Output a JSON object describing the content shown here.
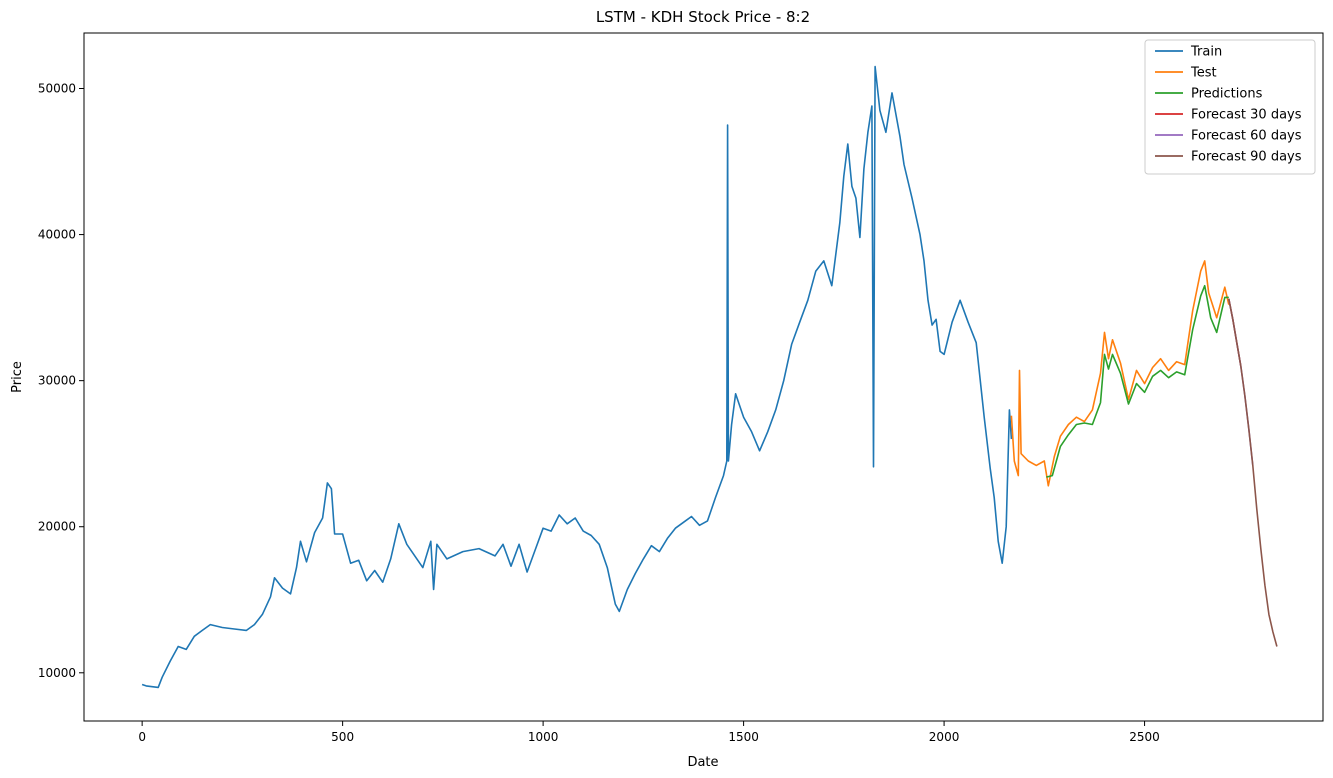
{
  "chart_data": {
    "type": "line",
    "title": "LSTM - KDH Stock Price - 8:2",
    "xlabel": "Date",
    "ylabel": "Price",
    "xlim": [
      -145,
      2945
    ],
    "ylim": [
      6700,
      53800
    ],
    "xticks": [
      0,
      500,
      1000,
      1500,
      2000,
      2500
    ],
    "yticks": [
      10000,
      20000,
      30000,
      40000,
      50000
    ],
    "grid": false,
    "legend_position": "top-right",
    "series": [
      {
        "name": "Train",
        "color": "#1f77b4",
        "points": [
          [
            0,
            9200
          ],
          [
            10,
            9100
          ],
          [
            40,
            9000
          ],
          [
            50,
            9700
          ],
          [
            70,
            10800
          ],
          [
            90,
            11800
          ],
          [
            110,
            11600
          ],
          [
            130,
            12500
          ],
          [
            150,
            12900
          ],
          [
            170,
            13300
          ],
          [
            200,
            13100
          ],
          [
            230,
            13000
          ],
          [
            260,
            12900
          ],
          [
            280,
            13300
          ],
          [
            300,
            14000
          ],
          [
            320,
            15200
          ],
          [
            330,
            16500
          ],
          [
            350,
            15800
          ],
          [
            370,
            15400
          ],
          [
            385,
            17200
          ],
          [
            395,
            19000
          ],
          [
            410,
            17600
          ],
          [
            430,
            19600
          ],
          [
            450,
            20600
          ],
          [
            462,
            23000
          ],
          [
            472,
            22600
          ],
          [
            480,
            19500
          ],
          [
            500,
            19500
          ],
          [
            520,
            17500
          ],
          [
            540,
            17700
          ],
          [
            560,
            16300
          ],
          [
            580,
            17000
          ],
          [
            600,
            16200
          ],
          [
            620,
            17800
          ],
          [
            640,
            20200
          ],
          [
            660,
            18800
          ],
          [
            680,
            18000
          ],
          [
            700,
            17200
          ],
          [
            720,
            19000
          ],
          [
            727,
            15700
          ],
          [
            735,
            18800
          ],
          [
            760,
            17800
          ],
          [
            800,
            18300
          ],
          [
            840,
            18500
          ],
          [
            880,
            18000
          ],
          [
            900,
            18800
          ],
          [
            920,
            17300
          ],
          [
            940,
            18800
          ],
          [
            960,
            16900
          ],
          [
            980,
            18400
          ],
          [
            1000,
            19900
          ],
          [
            1020,
            19700
          ],
          [
            1040,
            20800
          ],
          [
            1060,
            20200
          ],
          [
            1080,
            20600
          ],
          [
            1100,
            19700
          ],
          [
            1120,
            19400
          ],
          [
            1140,
            18800
          ],
          [
            1160,
            17200
          ],
          [
            1180,
            14700
          ],
          [
            1190,
            14200
          ],
          [
            1210,
            15700
          ],
          [
            1230,
            16800
          ],
          [
            1250,
            17800
          ],
          [
            1270,
            18700
          ],
          [
            1290,
            18300
          ],
          [
            1310,
            19200
          ],
          [
            1330,
            19900
          ],
          [
            1350,
            20300
          ],
          [
            1370,
            20700
          ],
          [
            1390,
            20100
          ],
          [
            1410,
            20400
          ],
          [
            1430,
            22000
          ],
          [
            1450,
            23500
          ],
          [
            1458,
            24500
          ],
          [
            1460,
            47500
          ],
          [
            1462,
            24500
          ],
          [
            1470,
            27000
          ],
          [
            1480,
            29100
          ],
          [
            1500,
            27500
          ],
          [
            1520,
            26500
          ],
          [
            1540,
            25200
          ],
          [
            1560,
            26500
          ],
          [
            1580,
            28000
          ],
          [
            1600,
            30000
          ],
          [
            1620,
            32500
          ],
          [
            1640,
            34000
          ],
          [
            1660,
            35500
          ],
          [
            1680,
            37500
          ],
          [
            1700,
            38200
          ],
          [
            1720,
            36500
          ],
          [
            1740,
            40800
          ],
          [
            1750,
            44000
          ],
          [
            1760,
            46200
          ],
          [
            1770,
            43300
          ],
          [
            1780,
            42500
          ],
          [
            1790,
            39800
          ],
          [
            1800,
            44500
          ],
          [
            1810,
            47000
          ],
          [
            1820,
            48800
          ],
          [
            1824,
            24100
          ],
          [
            1828,
            51500
          ],
          [
            1840,
            48500
          ],
          [
            1855,
            47000
          ],
          [
            1870,
            49700
          ],
          [
            1890,
            46700
          ],
          [
            1900,
            44800
          ],
          [
            1920,
            42500
          ],
          [
            1940,
            40000
          ],
          [
            1950,
            38200
          ],
          [
            1960,
            35500
          ],
          [
            1970,
            33800
          ],
          [
            1980,
            34200
          ],
          [
            1990,
            32000
          ],
          [
            2000,
            31800
          ],
          [
            2020,
            34000
          ],
          [
            2040,
            35500
          ],
          [
            2060,
            34000
          ],
          [
            2080,
            32600
          ],
          [
            2100,
            27500
          ],
          [
            2115,
            24000
          ],
          [
            2125,
            22000
          ],
          [
            2135,
            19000
          ],
          [
            2145,
            17500
          ],
          [
            2155,
            20000
          ],
          [
            2163,
            28000
          ],
          [
            2168,
            26000
          ]
        ]
      },
      {
        "name": "Test",
        "color": "#ff7f0e",
        "points": [
          [
            2168,
            27600
          ],
          [
            2175,
            24500
          ],
          [
            2185,
            23500
          ],
          [
            2188,
            30700
          ],
          [
            2192,
            25000
          ],
          [
            2210,
            24500
          ],
          [
            2230,
            24200
          ],
          [
            2250,
            24500
          ],
          [
            2260,
            22800
          ],
          [
            2275,
            24800
          ],
          [
            2290,
            26200
          ],
          [
            2310,
            27000
          ],
          [
            2330,
            27500
          ],
          [
            2350,
            27200
          ],
          [
            2370,
            28000
          ],
          [
            2390,
            30500
          ],
          [
            2400,
            33300
          ],
          [
            2410,
            31500
          ],
          [
            2420,
            32800
          ],
          [
            2440,
            31200
          ],
          [
            2460,
            28700
          ],
          [
            2480,
            30700
          ],
          [
            2500,
            29800
          ],
          [
            2520,
            30900
          ],
          [
            2540,
            31500
          ],
          [
            2560,
            30700
          ],
          [
            2580,
            31300
          ],
          [
            2600,
            31100
          ],
          [
            2620,
            34800
          ],
          [
            2640,
            37500
          ],
          [
            2650,
            38200
          ],
          [
            2660,
            36000
          ],
          [
            2680,
            34300
          ],
          [
            2700,
            36400
          ],
          [
            2710,
            35200
          ]
        ]
      },
      {
        "name": "Predictions",
        "color": "#2ca02c",
        "points": [
          [
            2255,
            23400
          ],
          [
            2270,
            23500
          ],
          [
            2290,
            25500
          ],
          [
            2310,
            26300
          ],
          [
            2330,
            27000
          ],
          [
            2350,
            27100
          ],
          [
            2370,
            27000
          ],
          [
            2390,
            28500
          ],
          [
            2400,
            31800
          ],
          [
            2410,
            30800
          ],
          [
            2420,
            31800
          ],
          [
            2440,
            30500
          ],
          [
            2460,
            28400
          ],
          [
            2480,
            29800
          ],
          [
            2500,
            29200
          ],
          [
            2520,
            30300
          ],
          [
            2540,
            30700
          ],
          [
            2560,
            30200
          ],
          [
            2580,
            30600
          ],
          [
            2600,
            30400
          ],
          [
            2620,
            33500
          ],
          [
            2640,
            35800
          ],
          [
            2650,
            36500
          ],
          [
            2665,
            34300
          ],
          [
            2680,
            33300
          ],
          [
            2700,
            35700
          ],
          [
            2710,
            35700
          ]
        ]
      },
      {
        "name": "Forecast 30 days",
        "color": "#d62728",
        "points": [
          [
            2710,
            35600
          ],
          [
            2720,
            34200
          ],
          [
            2730,
            32600
          ],
          [
            2740,
            31000
          ]
        ]
      },
      {
        "name": "Forecast 60 days",
        "color": "#9467bd",
        "points": [
          [
            2710,
            35600
          ],
          [
            2720,
            34200
          ],
          [
            2730,
            32600
          ],
          [
            2740,
            31000
          ],
          [
            2750,
            29000
          ],
          [
            2760,
            26700
          ],
          [
            2770,
            24200
          ]
        ]
      },
      {
        "name": "Forecast 90 days",
        "color": "#8c564b",
        "points": [
          [
            2710,
            35600
          ],
          [
            2720,
            34200
          ],
          [
            2730,
            32600
          ],
          [
            2740,
            31000
          ],
          [
            2750,
            29000
          ],
          [
            2760,
            26700
          ],
          [
            2770,
            24200
          ],
          [
            2780,
            21200
          ],
          [
            2790,
            18500
          ],
          [
            2800,
            16000
          ],
          [
            2810,
            14000
          ],
          [
            2820,
            12800
          ],
          [
            2830,
            11800
          ]
        ]
      }
    ]
  }
}
